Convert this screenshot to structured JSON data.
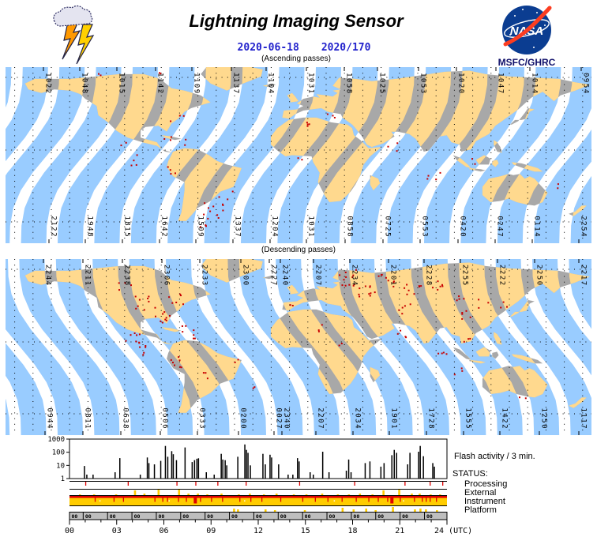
{
  "header": {
    "title": "Lightning Imaging Sensor",
    "date_iso": "2020-06-18",
    "date_doy": "2020/170",
    "agency": "MSFC/GHRC",
    "nasa_logo_text": "NASA"
  },
  "colors": {
    "swath_ocean": "#99CCFF",
    "swath_land": "#FFD98E",
    "land_gray": "#A8A8A8",
    "flash_red": "#C80000",
    "date_blue": "#2222CC",
    "status_yellow": "#FFCC00",
    "status_red": "#E00000",
    "gray_bar": "#BEBEBE",
    "nasa_blue": "#0B3D91",
    "nasa_red": "#FC3D21"
  },
  "maps": [
    {
      "name": "ascending",
      "caption": "(Ascending passes)",
      "direction": "asc",
      "top_labels": [
        [
          "1022",
          48
        ],
        [
          "1048",
          94
        ],
        [
          "1015",
          141
        ],
        [
          "1142",
          190
        ],
        [
          "1109",
          236
        ],
        [
          "1137",
          286
        ],
        [
          "1104",
          330
        ],
        [
          "1031",
          381
        ],
        [
          "1058",
          429
        ],
        [
          "1025",
          471
        ],
        [
          "1053",
          523
        ],
        [
          "1020",
          571
        ],
        [
          "1047",
          621
        ],
        [
          "1014",
          664
        ],
        [
          "0954",
          729
        ]
      ],
      "bottom_labels": [
        [
          "2122",
          55
        ],
        [
          "1948",
          101
        ],
        [
          "1815",
          148
        ],
        [
          "1642",
          195
        ],
        [
          "1509",
          241
        ],
        [
          "1337",
          288
        ],
        [
          "1204",
          335
        ],
        [
          "1031",
          381
        ],
        [
          "0858",
          430
        ],
        [
          "0725",
          478
        ],
        [
          "0553",
          525
        ],
        [
          "0420",
          573
        ],
        [
          "0247",
          620
        ],
        [
          "0114",
          667
        ],
        [
          "2254",
          726
        ]
      ],
      "flash_clusters": [
        [
          116,
          8,
          2,
          5
        ],
        [
          198,
          6,
          2,
          6
        ],
        [
          148,
          95,
          2,
          5
        ],
        [
          205,
          90,
          3,
          8
        ],
        [
          218,
          68,
          3,
          10
        ],
        [
          230,
          95,
          2,
          6
        ],
        [
          165,
          118,
          4,
          10
        ],
        [
          213,
          132,
          4,
          9
        ],
        [
          262,
          182,
          10,
          14
        ],
        [
          278,
          160,
          3,
          10
        ],
        [
          252,
          195,
          4,
          8
        ],
        [
          385,
          70,
          4,
          10
        ],
        [
          408,
          58,
          3,
          8
        ],
        [
          372,
          118,
          2,
          6
        ],
        [
          490,
          100,
          3,
          8
        ],
        [
          540,
          138,
          4,
          10
        ],
        [
          592,
          118,
          2,
          6
        ],
        [
          700,
          150,
          2,
          5
        ]
      ]
    },
    {
      "name": "descending",
      "caption": "(Descending passes)",
      "direction": "desc",
      "top_labels": [
        [
          "2244",
          48
        ],
        [
          "2211",
          98
        ],
        [
          "2238",
          148
        ],
        [
          "2306",
          198
        ],
        [
          "2233",
          246
        ],
        [
          "2300",
          298
        ],
        [
          "2227",
          334
        ],
        [
          "2240",
          348
        ],
        [
          "2207",
          390
        ],
        [
          "2234",
          436
        ],
        [
          "2201",
          485
        ],
        [
          "2228",
          530
        ],
        [
          "2255",
          576
        ],
        [
          "2222",
          623
        ],
        [
          "2250",
          670
        ],
        [
          "2217",
          726
        ]
      ],
      "bottom_labels": [
        [
          "0944",
          50
        ],
        [
          "0811",
          98
        ],
        [
          "0638",
          146
        ],
        [
          "0506",
          196
        ],
        [
          "0333",
          243
        ],
        [
          "0200",
          295
        ],
        [
          "0027",
          340
        ],
        [
          "2340",
          350
        ],
        [
          "2207",
          393
        ],
        [
          "2034",
          440
        ],
        [
          "1901",
          486
        ],
        [
          "1728",
          533
        ],
        [
          "1555",
          580
        ],
        [
          "1422",
          626
        ],
        [
          "1250",
          676
        ],
        [
          "1117",
          726
        ]
      ],
      "flash_clusters": [
        [
          150,
          35,
          4,
          8
        ],
        [
          170,
          55,
          8,
          12
        ],
        [
          195,
          70,
          10,
          12
        ],
        [
          215,
          50,
          6,
          10
        ],
        [
          230,
          85,
          4,
          8
        ],
        [
          160,
          98,
          8,
          10
        ],
        [
          175,
          115,
          5,
          8
        ],
        [
          215,
          130,
          7,
          10
        ],
        [
          240,
          100,
          3,
          6
        ],
        [
          255,
          148,
          3,
          8
        ],
        [
          290,
          130,
          2,
          5
        ],
        [
          310,
          160,
          2,
          5
        ],
        [
          358,
          60,
          2,
          5
        ],
        [
          400,
          88,
          3,
          8
        ],
        [
          420,
          108,
          2,
          5
        ],
        [
          430,
          22,
          12,
          14
        ],
        [
          455,
          40,
          10,
          12
        ],
        [
          480,
          28,
          8,
          12
        ],
        [
          515,
          38,
          8,
          12
        ],
        [
          548,
          32,
          6,
          10
        ],
        [
          575,
          45,
          4,
          8
        ],
        [
          505,
          62,
          5,
          10
        ],
        [
          580,
          70,
          5,
          10
        ],
        [
          605,
          55,
          3,
          8
        ],
        [
          500,
          92,
          4,
          8
        ],
        [
          555,
          118,
          4,
          8
        ],
        [
          582,
          100,
          3,
          6
        ],
        [
          628,
          58,
          3,
          6
        ],
        [
          573,
          140,
          3,
          8
        ],
        [
          655,
          172,
          2,
          5
        ]
      ]
    }
  ],
  "chart_data": {
    "type": "bar",
    "title": "Flash activity / 3 min.",
    "x_unit": "(UTC)",
    "x_ticks": [
      "00",
      "03",
      "06",
      "09",
      "12",
      "15",
      "18",
      "21",
      "24"
    ],
    "y_ticks": [
      "1000",
      "100",
      "10",
      "1"
    ],
    "y_log": true,
    "ylim": [
      1,
      1000
    ],
    "xlim_hours": [
      0,
      24
    ],
    "spikes": [
      [
        0.95,
        9
      ],
      [
        1.1,
        2
      ],
      [
        1.5,
        2
      ],
      [
        2.9,
        3
      ],
      [
        3.2,
        36
      ],
      [
        4.5,
        2
      ],
      [
        4.95,
        40
      ],
      [
        5.05,
        15
      ],
      [
        5.4,
        12
      ],
      [
        5.8,
        22
      ],
      [
        6.1,
        300
      ],
      [
        6.25,
        45
      ],
      [
        6.5,
        120
      ],
      [
        6.6,
        70
      ],
      [
        6.8,
        25
      ],
      [
        7.35,
        230
      ],
      [
        7.8,
        18
      ],
      [
        7.95,
        25
      ],
      [
        8.1,
        32
      ],
      [
        8.2,
        35
      ],
      [
        8.7,
        3
      ],
      [
        9.2,
        2
      ],
      [
        9.65,
        75
      ],
      [
        9.75,
        28
      ],
      [
        9.9,
        25
      ],
      [
        10.0,
        10
      ],
      [
        10.7,
        45
      ],
      [
        11.15,
        390
      ],
      [
        11.25,
        150
      ],
      [
        11.35,
        90
      ],
      [
        11.5,
        10
      ],
      [
        12.3,
        75
      ],
      [
        12.45,
        12
      ],
      [
        12.75,
        65
      ],
      [
        12.85,
        40
      ],
      [
        13.3,
        12
      ],
      [
        13.9,
        2
      ],
      [
        14.2,
        2
      ],
      [
        14.5,
        36
      ],
      [
        14.6,
        20
      ],
      [
        15.3,
        3
      ],
      [
        15.5,
        2
      ],
      [
        16.1,
        110
      ],
      [
        16.5,
        3
      ],
      [
        17.6,
        4
      ],
      [
        17.75,
        28
      ],
      [
        17.9,
        3
      ],
      [
        18.8,
        15
      ],
      [
        19.1,
        20
      ],
      [
        19.8,
        8
      ],
      [
        20.0,
        15
      ],
      [
        20.5,
        60
      ],
      [
        20.65,
        150
      ],
      [
        20.8,
        90
      ],
      [
        21.5,
        12
      ],
      [
        21.65,
        90
      ],
      [
        22.2,
        110
      ],
      [
        22.3,
        300
      ],
      [
        22.5,
        50
      ],
      [
        23.1,
        15
      ],
      [
        23.2,
        8
      ]
    ],
    "status": {
      "label": "STATUS:",
      "rows": [
        "Processing",
        "External",
        "Instrument",
        "Platform"
      ],
      "processing_marks": [
        1.0,
        3.7,
        6.8,
        8.0,
        9.4,
        11.2,
        14.6,
        18.1,
        21.3,
        22.9,
        23.7
      ],
      "external_bumps": [
        [
          0.6,
          2
        ],
        [
          1.5,
          2
        ],
        [
          2.9,
          2
        ],
        [
          4.1,
          7
        ],
        [
          4.7,
          3
        ],
        [
          5.6,
          8
        ],
        [
          6.9,
          8
        ],
        [
          7.5,
          3
        ],
        [
          8.1,
          3
        ],
        [
          8.7,
          2
        ],
        [
          9.6,
          3
        ],
        [
          10.7,
          2
        ],
        [
          11.4,
          3
        ],
        [
          12.3,
          2
        ],
        [
          13.1,
          3
        ],
        [
          14.2,
          2
        ],
        [
          15.0,
          2
        ],
        [
          16.0,
          3
        ],
        [
          17.0,
          2
        ],
        [
          17.7,
          2
        ],
        [
          18.4,
          3
        ],
        [
          19.2,
          2
        ],
        [
          19.9,
          7
        ],
        [
          20.9,
          8
        ],
        [
          21.7,
          3
        ],
        [
          22.2,
          3
        ],
        [
          22.9,
          2
        ],
        [
          23.5,
          2
        ]
      ],
      "instrument_marks": [
        1.6,
        2.8,
        3.4,
        5.4,
        5.9,
        6.2,
        6.9,
        7.4,
        8.3,
        9.0,
        9.7,
        10.8,
        11.5,
        12.2,
        13.4,
        14.8,
        15.6,
        16.4,
        17.3,
        18.2,
        19.0,
        19.6,
        20.2,
        21.0,
        21.9,
        22.4,
        22.65,
        22.9,
        23.3
      ],
      "instrument_wide_marks": [
        8.0,
        20.5
      ],
      "instrument_white_specks": [
        1.9,
        6.3,
        11.1,
        16.8,
        21.2
      ],
      "platform_bumps": [
        [
          10.4,
          4
        ],
        [
          10.65,
          3
        ],
        [
          12.4,
          3
        ],
        [
          13.0,
          2
        ],
        [
          14.9,
          2
        ],
        [
          17.3,
          5
        ],
        [
          18.0,
          3
        ],
        [
          18.8,
          4
        ],
        [
          19.4,
          2
        ],
        [
          20.5,
          6
        ],
        [
          21.9,
          3
        ],
        [
          22.25,
          4
        ],
        [
          22.6,
          3
        ],
        [
          23.3,
          2
        ]
      ],
      "orbit_cell_edges_hours": [
        0,
        0.87,
        2.42,
        3.97,
        5.52,
        7.07,
        8.62,
        10.17,
        11.72,
        13.27,
        14.82,
        16.37,
        17.92,
        19.47,
        21.02,
        22.57,
        24
      ],
      "orbit_flags": [
        "00",
        "00",
        "00",
        "00",
        "00",
        "00",
        "00",
        "00",
        "00",
        "00",
        "00",
        "00",
        "00",
        "00",
        "00",
        "00"
      ]
    }
  }
}
